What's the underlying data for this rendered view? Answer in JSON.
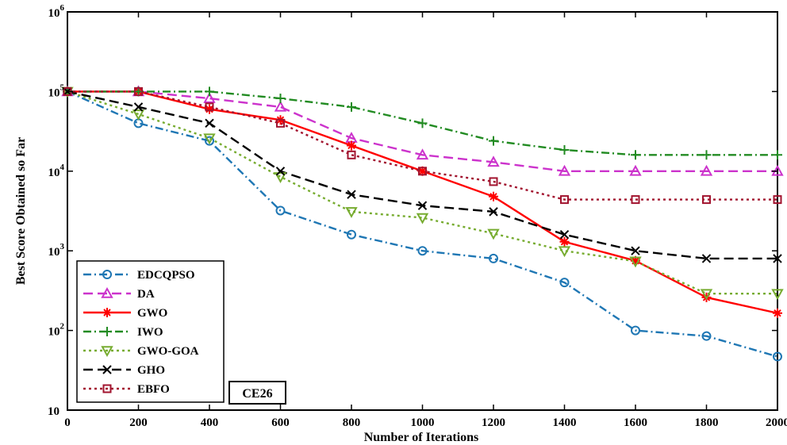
{
  "chart_data": {
    "type": "line",
    "xlabel": "Number of Iterations",
    "ylabel": "Best Score Obtained so Far",
    "xlim": [
      0,
      2000
    ],
    "ylim": [
      10,
      1000000
    ],
    "yscale": "log",
    "grid": false,
    "legend_position": "bottom-left",
    "x_ticks": [
      0,
      200,
      400,
      600,
      800,
      1000,
      1200,
      1400,
      1600,
      1800,
      2000
    ],
    "x_tick_labels": [
      "0",
      "200",
      "400",
      "600",
      "800",
      "1000",
      "1200",
      "1400",
      "1600",
      "1800",
      "2000"
    ],
    "y_ticks": [
      10,
      100,
      1000,
      10000,
      100000,
      1000000
    ],
    "y_tick_labels": [
      {
        "base": "10",
        "exp": ""
      },
      {
        "base": "10",
        "exp": "2"
      },
      {
        "base": "10",
        "exp": "3"
      },
      {
        "base": "10",
        "exp": "4"
      },
      {
        "base": "10",
        "exp": "5"
      },
      {
        "base": "10",
        "exp": "6"
      }
    ],
    "x": [
      0,
      200,
      400,
      600,
      800,
      1000,
      1200,
      1400,
      1600,
      1800,
      2000
    ],
    "annotation": "CE26",
    "series": [
      {
        "name": "EDCQPSO",
        "color": "#1f77b4",
        "dash": "dashdot",
        "marker": "circle",
        "values": [
          100000,
          40000,
          24000,
          3200,
          1600,
          1000,
          800,
          400,
          100,
          85,
          47
        ]
      },
      {
        "name": "DA",
        "color": "#cc33cc",
        "dash": "dashed",
        "marker": "triangle-up",
        "values": [
          100000,
          100000,
          82000,
          64000,
          26000,
          16000,
          13000,
          10000,
          10000,
          10000,
          10000
        ]
      },
      {
        "name": "GWO",
        "color": "#ff0000",
        "dash": "solid",
        "marker": "star",
        "values": [
          100000,
          100000,
          60000,
          44000,
          21000,
          10000,
          4800,
          1300,
          750,
          260,
          165
        ]
      },
      {
        "name": "IWO",
        "color": "#228b22",
        "dash": "dashdot",
        "marker": "plus",
        "values": [
          100000,
          100000,
          100000,
          82000,
          64000,
          40000,
          24000,
          18500,
          16000,
          16000,
          16000
        ]
      },
      {
        "name": "GWO-GOA",
        "color": "#77ac30",
        "dash": "dotted",
        "marker": "triangle-down",
        "values": [
          100000,
          52000,
          26000,
          8500,
          3100,
          2600,
          1650,
          1000,
          740,
          290,
          290
        ]
      },
      {
        "name": "GHO",
        "color": "#000000",
        "dash": "dashed",
        "marker": "x",
        "values": [
          100000,
          64000,
          40000,
          10000,
          5100,
          3700,
          3100,
          1600,
          1000,
          800,
          800
        ]
      },
      {
        "name": "EBFO",
        "color": "#a2142f",
        "dash": "dotted",
        "marker": "square",
        "values": [
          100000,
          100000,
          64000,
          40000,
          16000,
          10000,
          7400,
          4400,
          4400,
          4400,
          4400
        ]
      }
    ]
  }
}
